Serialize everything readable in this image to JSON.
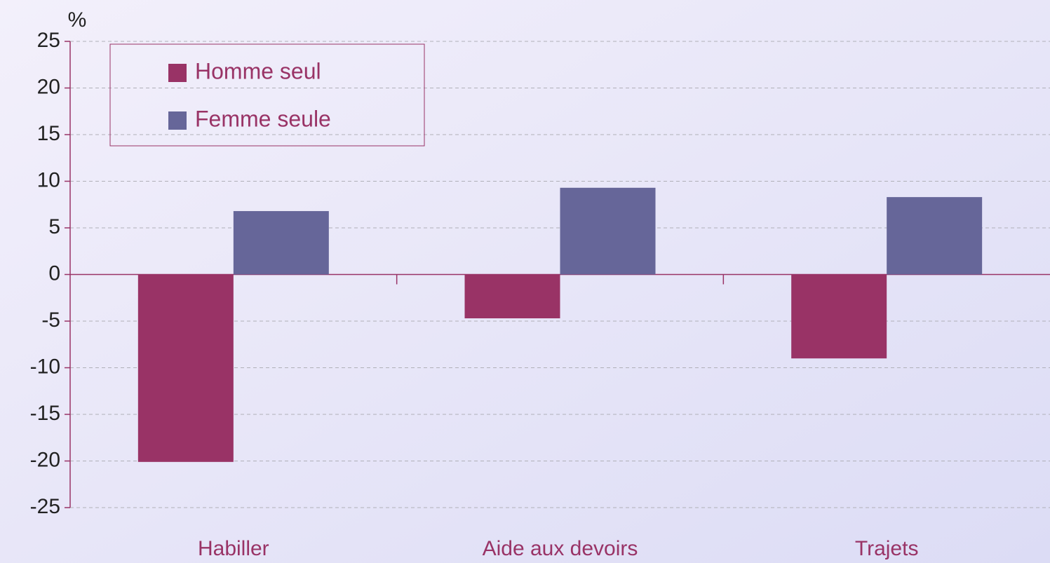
{
  "chart_data": {
    "type": "bar",
    "y_label": "%",
    "categories": [
      "Habiller",
      "Aide aux devoirs",
      "Trajets"
    ],
    "series": [
      {
        "name": "Homme seul",
        "color": "#993366",
        "values": [
          -20.1,
          -4.7,
          -9.0
        ]
      },
      {
        "name": "Femme seule",
        "color": "#666699",
        "values": [
          6.8,
          9.3,
          8.3
        ]
      }
    ],
    "ylim": [
      -25,
      25
    ],
    "yticks": [
      -25,
      -20,
      -15,
      -10,
      -5,
      0,
      5,
      10,
      15,
      20,
      25
    ],
    "grid": true,
    "legend": "top-left"
  }
}
